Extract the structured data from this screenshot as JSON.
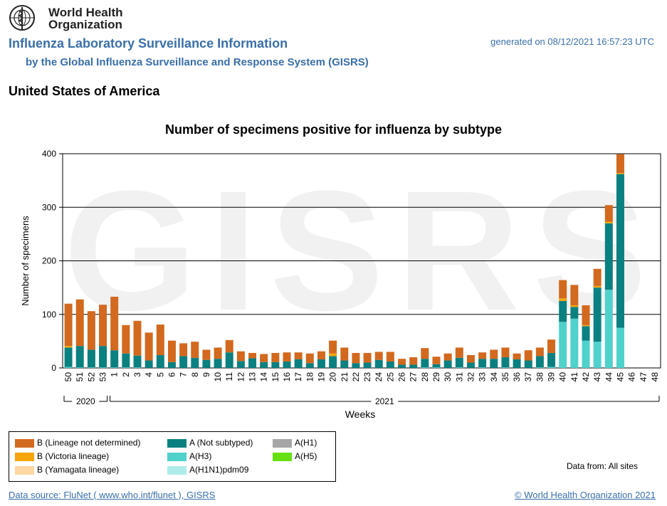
{
  "header": {
    "org_name_line1": "World Health",
    "org_name_line2": "Organization",
    "title": "Influenza Laboratory Surveillance Information",
    "subtitle": "by the Global Influenza Surveillance and Response System (GISRS)",
    "generated": "generated on 08/12/2021 16:57:23 UTC",
    "country": "United States of America"
  },
  "watermark": "GISRS",
  "chart_data": {
    "type": "bar",
    "stacked": true,
    "title": "Number of specimens positive for influenza by subtype",
    "xlabel": "Weeks",
    "ylabel": "Number of specimens",
    "ylim": [
      0,
      400
    ],
    "yticks": [
      0,
      100,
      200,
      300,
      400
    ],
    "grid": true,
    "categories": [
      "50",
      "51",
      "52",
      "53",
      "1",
      "2",
      "3",
      "4",
      "5",
      "6",
      "7",
      "8",
      "9",
      "10",
      "11",
      "12",
      "13",
      "14",
      "15",
      "16",
      "17",
      "18",
      "19",
      "20",
      "21",
      "22",
      "23",
      "24",
      "25",
      "26",
      "27",
      "28",
      "29",
      "30",
      "31",
      "32",
      "33",
      "34",
      "35",
      "36",
      "37",
      "38",
      "39",
      "40",
      "41",
      "42",
      "43",
      "44",
      "45",
      "46",
      "47",
      "48"
    ],
    "year_groups": [
      {
        "label": "2020",
        "from": 0,
        "to": 3
      },
      {
        "label": "2021",
        "from": 4,
        "to": 51
      }
    ],
    "series": [
      {
        "name": "A(H1N1)pdm09",
        "color": "#aeeceb",
        "values": [
          0,
          0,
          0,
          0,
          0,
          0,
          0,
          0,
          0,
          0,
          0,
          0,
          0,
          0,
          0,
          0,
          0,
          0,
          0,
          0,
          0,
          0,
          0,
          0,
          0,
          0,
          0,
          0,
          0,
          0,
          0,
          0,
          0,
          0,
          0,
          0,
          0,
          0,
          0,
          0,
          0,
          0,
          0,
          0,
          0,
          0,
          0,
          0,
          0,
          0,
          0,
          0
        ]
      },
      {
        "name": "A(H3)",
        "color": "#4fd1cc",
        "values": [
          2,
          1,
          1,
          1,
          1,
          1,
          1,
          0,
          0,
          0,
          0,
          0,
          0,
          0,
          0,
          0,
          0,
          0,
          0,
          0,
          0,
          0,
          0,
          0,
          0,
          0,
          0,
          0,
          0,
          0,
          0,
          1,
          1,
          0,
          1,
          0,
          1,
          0,
          1,
          0,
          0,
          1,
          2,
          86,
          92,
          51,
          49,
          146,
          75,
          0,
          0,
          0
        ]
      },
      {
        "name": "A (Not subtyped)",
        "color": "#0a8080",
        "values": [
          36,
          40,
          33,
          40,
          32,
          26,
          22,
          14,
          24,
          11,
          22,
          19,
          15,
          17,
          29,
          13,
          18,
          11,
          11,
          12,
          16,
          9,
          16,
          22,
          14,
          9,
          10,
          15,
          12,
          6,
          6,
          16,
          6,
          14,
          18,
          10,
          16,
          17,
          19,
          16,
          14,
          21,
          26,
          39,
          22,
          27,
          101,
          124,
          287,
          0,
          0,
          0
        ]
      },
      {
        "name": "A(H5)",
        "color": "#66e010",
        "values": [
          0,
          0,
          0,
          0,
          0,
          0,
          0,
          0,
          0,
          0,
          0,
          0,
          0,
          0,
          0,
          0,
          0,
          0,
          0,
          0,
          0,
          0,
          0,
          0,
          0,
          0,
          0,
          0,
          0,
          0,
          0,
          0,
          0,
          0,
          0,
          0,
          0,
          0,
          0,
          0,
          0,
          0,
          0,
          0,
          0,
          0,
          0,
          0,
          0,
          0,
          0,
          0
        ]
      },
      {
        "name": "A(H1)",
        "color": "#a6a6a6",
        "values": [
          0,
          0,
          0,
          0,
          0,
          0,
          0,
          0,
          0,
          0,
          0,
          0,
          0,
          0,
          0,
          0,
          0,
          0,
          0,
          0,
          0,
          0,
          0,
          0,
          0,
          0,
          0,
          0,
          0,
          0,
          0,
          0,
          0,
          0,
          0,
          0,
          0,
          0,
          0,
          0,
          0,
          0,
          0,
          0,
          0,
          0,
          0,
          0,
          0,
          0,
          0,
          0
        ]
      },
      {
        "name": "B (Yamagata lineage)",
        "color": "#fed7a3",
        "values": [
          0,
          0,
          0,
          0,
          0,
          0,
          0,
          0,
          0,
          0,
          0,
          0,
          0,
          0,
          0,
          0,
          0,
          0,
          0,
          0,
          0,
          0,
          0,
          0,
          0,
          0,
          0,
          0,
          0,
          0,
          0,
          0,
          0,
          0,
          0,
          0,
          0,
          0,
          0,
          0,
          0,
          0,
          0,
          0,
          0,
          0,
          0,
          0,
          0,
          0,
          0,
          0
        ]
      },
      {
        "name": "B (Victoria lineage)",
        "color": "#f5a40c",
        "values": [
          3,
          0,
          0,
          0,
          0,
          0,
          0,
          0,
          0,
          0,
          0,
          0,
          0,
          0,
          0,
          0,
          0,
          0,
          0,
          0,
          0,
          0,
          0,
          5,
          0,
          0,
          0,
          0,
          0,
          0,
          0,
          0,
          0,
          0,
          0,
          0,
          0,
          0,
          0,
          0,
          0,
          0,
          0,
          5,
          3,
          2,
          3,
          3,
          2,
          0,
          0,
          0
        ]
      },
      {
        "name": "B (Lineage not determined)",
        "color": "#d2691e",
        "values": [
          79,
          87,
          72,
          77,
          100,
          53,
          65,
          52,
          57,
          40,
          24,
          30,
          19,
          21,
          23,
          18,
          10,
          15,
          17,
          17,
          13,
          18,
          15,
          24,
          24,
          19,
          18,
          15,
          18,
          11,
          14,
          20,
          14,
          13,
          19,
          14,
          12,
          17,
          18,
          11,
          19,
          16,
          25,
          34,
          38,
          37,
          32,
          31,
          35,
          0,
          0,
          0
        ]
      }
    ]
  },
  "legend": {
    "items": [
      {
        "label": "B (Lineage not determined)",
        "color": "#d2691e"
      },
      {
        "label": "B (Victoria lineage)",
        "color": "#f5a40c"
      },
      {
        "label": "B (Yamagata lineage)",
        "color": "#fed7a3"
      },
      {
        "label": "A (Not subtyped)",
        "color": "#0a8080"
      },
      {
        "label": "A(H3)",
        "color": "#4fd1cc"
      },
      {
        "label": "A(H1N1)pdm09",
        "color": "#aeeceb"
      },
      {
        "label": "A(H1)",
        "color": "#a6a6a6"
      },
      {
        "label": "A(H5)",
        "color": "#66e010"
      }
    ]
  },
  "data_from": "Data from: All sites",
  "footer": {
    "source": "Data source: FluNet ( www.who.int/flunet ), GISRS",
    "copyright": "© World Health Organization 2021"
  }
}
